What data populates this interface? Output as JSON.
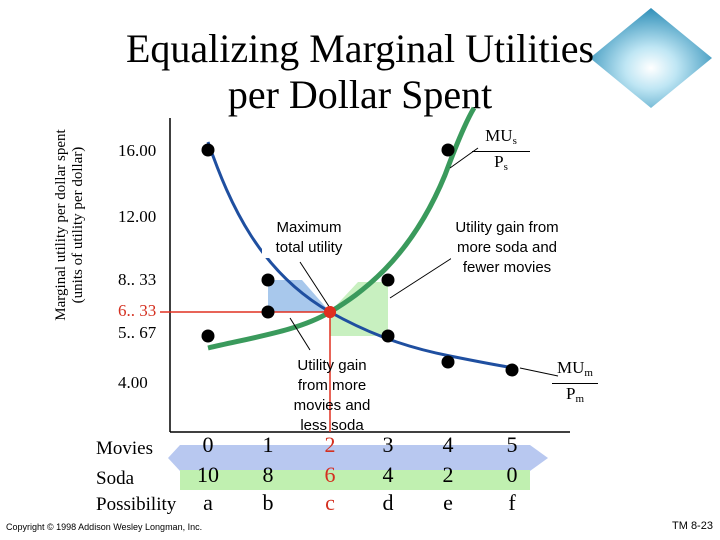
{
  "title_line1": "Equalizing Marginal Utilities",
  "title_line2": "per Dollar Spent",
  "chart_data": {
    "type": "line",
    "ylabel_line1": "Marginal utility per dollar spent",
    "ylabel_line2": "(units of utility per dollar)",
    "y_ticks": [
      "16.00",
      "12.00",
      "8.. 33",
      "6.. 33",
      "5.. 67",
      "4.00"
    ],
    "highlight_tick": "6.. 33",
    "rows": [
      {
        "label": "Movies",
        "values": [
          "0",
          "1",
          "2",
          "3",
          "4",
          "5"
        ]
      },
      {
        "label": "Soda",
        "values": [
          "10",
          "8",
          "6",
          "4",
          "2",
          "0"
        ]
      },
      {
        "label": "Possibility",
        "values": [
          "a",
          "b",
          "c",
          "d",
          "e",
          "f"
        ]
      }
    ],
    "series": [
      {
        "name": "MUs/Ps",
        "color": "#3a9a5c",
        "points": [
          {
            "x": "a",
            "y": 5.67
          },
          {
            "x": "b",
            "y": 6.33
          },
          {
            "x": "c",
            "y": 6.33
          },
          {
            "x": "d",
            "y": 8.33
          },
          {
            "x": "e",
            "y": 16.0
          }
        ]
      },
      {
        "name": "MUm/Pm",
        "color": "#1f4fa0",
        "points": [
          {
            "x": "a",
            "y": 16.0
          },
          {
            "x": "b",
            "y": 8.33
          },
          {
            "x": "c",
            "y": 6.33
          },
          {
            "x": "d",
            "y": 5.67
          },
          {
            "x": "e",
            "y": 4.83
          },
          {
            "x": "f",
            "y": 4.33
          }
        ]
      }
    ],
    "optimum": {
      "x": "c",
      "y": 6.33
    },
    "annotations": {
      "max_utility": "Maximum total utility",
      "soda_gain": "Utility gain from more soda and fewer movies",
      "movie_gain": "Utility gain from more movies and less soda"
    },
    "curve_labels": {
      "soda_top": "MU",
      "soda_top_sub": "s",
      "soda_bottom": "P",
      "soda_bottom_sub": "s",
      "movie_top": "MU",
      "movie_top_sub": "m",
      "movie_bottom": "P",
      "movie_bottom_sub": "m"
    }
  },
  "colors": {
    "soda_curve": "#3a9a5c",
    "movie_curve": "#1f4fa0",
    "soda_gain_fill": "#c8f0c0",
    "movie_gain_fill": "#a8c8ec",
    "optimum_line": "#e03020",
    "arrow_fill": "#b8c8f0",
    "arrow_green": "#c0f0b0",
    "highlight_text": "#d43020"
  },
  "footer": {
    "copyright": "Copyright © 1998 Addison Wesley Longman, Inc.",
    "slide_id": "TM 8-23"
  }
}
